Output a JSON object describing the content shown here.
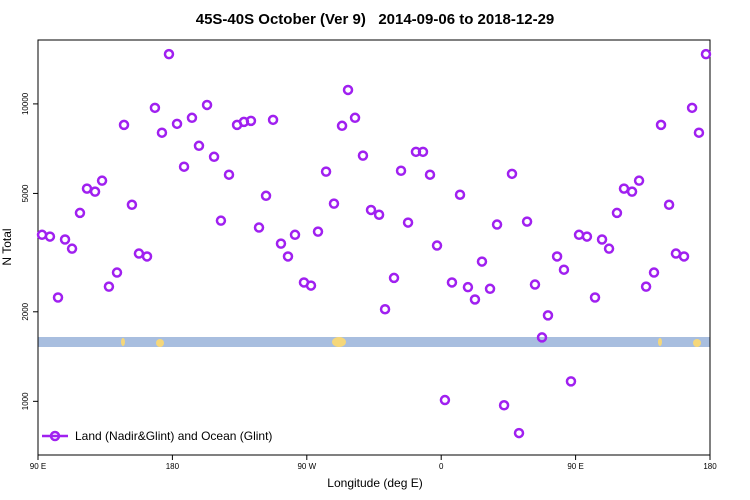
{
  "chart_data": {
    "type": "scatter",
    "title": "45S-40S October (Ver 9)   2014-09-06 to 2018-12-29",
    "xlabel": "Longitude (deg E)",
    "ylabel": "N Total",
    "log_y": true,
    "xlim": [
      90,
      540
    ],
    "ylim": [
      660,
      16400
    ],
    "xticks": [
      {
        "value": 90,
        "label": "90 E"
      },
      {
        "value": 180,
        "label": "180"
      },
      {
        "value": 270,
        "label": "90 W"
      },
      {
        "value": 360,
        "label": "0"
      },
      {
        "value": 450,
        "label": "90 E"
      },
      {
        "value": 540,
        "label": "180"
      }
    ],
    "yticks": [
      1000,
      2000,
      5000,
      10000
    ],
    "legend": "lower left",
    "series": [
      {
        "name": "Land (Nadir&Glint) and Ocean (Glint)",
        "color": "#a020f0",
        "x": [
          92.7,
          98.0,
          103.4,
          108.1,
          112.8,
          118.1,
          122.8,
          128.2,
          132.9,
          137.5,
          142.9,
          147.6,
          152.9,
          157.6,
          163.0,
          168.3,
          173.0,
          177.7,
          183.1,
          187.8,
          193.1,
          197.8,
          203.2,
          207.9,
          212.5,
          217.9,
          223.3,
          227.9,
          232.6,
          238.0,
          242.7,
          247.4,
          252.7,
          257.4,
          262.1,
          268.1,
          272.8,
          277.5,
          282.9,
          288.2,
          293.6,
          297.6,
          302.3,
          307.6,
          313.0,
          318.4,
          322.4,
          328.4,
          333.1,
          337.8,
          343.1,
          347.8,
          352.5,
          357.2,
          362.5,
          367.2,
          372.6,
          377.9,
          382.6,
          387.3,
          392.7,
          397.4,
          402.1,
          407.4,
          412.1,
          417.5,
          422.8,
          427.5,
          431.5,
          437.6,
          442.2,
          446.9,
          452.3,
          457.6,
          463.0,
          467.7,
          472.4,
          477.7,
          482.4,
          487.8,
          492.5,
          497.2,
          502.5,
          507.2,
          512.6,
          517.2,
          522.6,
          528.0,
          532.6,
          537.3
        ],
        "values": [
          3630,
          3580,
          2234,
          3500,
          3260,
          4300,
          5190,
          5070,
          5520,
          2430,
          2710,
          8500,
          4580,
          3140,
          3070,
          9700,
          8000,
          14700,
          8570,
          6150,
          8980,
          7230,
          9920,
          6640,
          4050,
          5780,
          8500,
          8700,
          8770,
          3840,
          4910,
          8840,
          3390,
          3070,
          3630,
          2510,
          2450,
          3720,
          5920,
          4620,
          8440,
          11140,
          8980,
          6700,
          4400,
          4240,
          2040,
          2600,
          5960,
          3990,
          6900,
          6900,
          5780,
          3340,
          1010,
          2510,
          4950,
          2420,
          2200,
          2950,
          2390,
          3930,
          970,
          5820,
          782,
          4020,
          2470,
          1640,
          1945,
          3070,
          2770,
          1167,
          3630,
          3580,
          2234,
          3500,
          3260,
          4300,
          5190,
          5070,
          5520,
          2430,
          2710,
          8500,
          4580,
          3140,
          3070,
          9700,
          8000,
          14700
        ]
      }
    ]
  }
}
